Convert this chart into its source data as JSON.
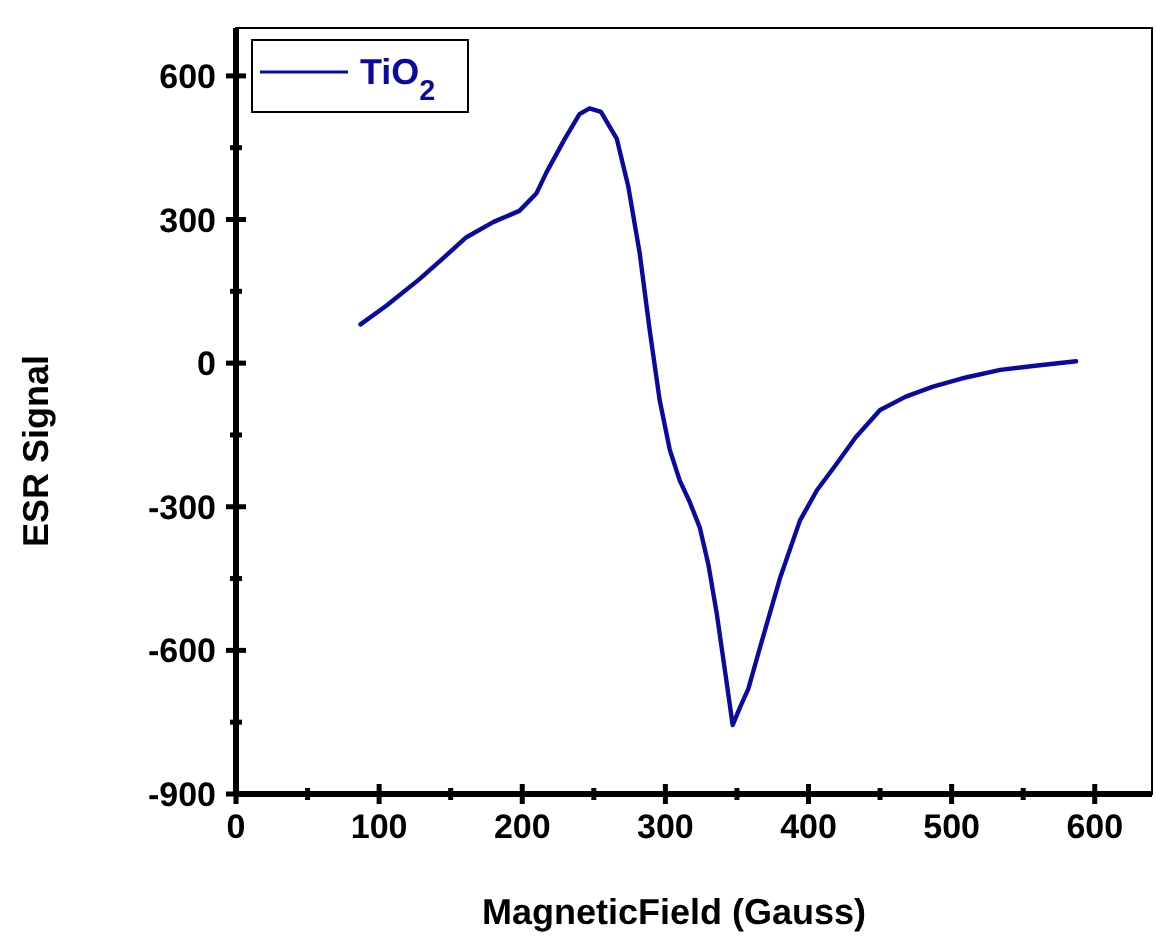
{
  "chart_data": {
    "type": "line",
    "xlabel": "MagneticField (Gauss)",
    "ylabel": "ESR Signal",
    "xlim": [
      0,
      640
    ],
    "ylim": [
      -900,
      700
    ],
    "xticks": [
      0,
      {
        "value": 50,
        "label": null
      },
      100,
      {
        "value": 150,
        "label": null
      },
      200,
      {
        "value": 250,
        "label": null
      },
      300,
      {
        "value": 350,
        "label": null
      },
      400,
      {
        "value": 450,
        "label": null
      },
      500,
      {
        "value": 550,
        "label": null
      },
      600
    ],
    "yticks": [
      -900,
      {
        "value": -750,
        "label": null
      },
      -600,
      {
        "value": -450,
        "label": null
      },
      -300,
      {
        "value": -150,
        "label": null
      },
      0,
      {
        "value": 150,
        "label": null
      },
      300,
      {
        "value": 450,
        "label": null
      },
      600
    ],
    "legend": "top left",
    "grid": false,
    "marker": "none",
    "line_style": "solid",
    "series": [
      {
        "name": "TiO$_{2}$",
        "color": "#0a0aa0",
        "x": [
          87,
          105,
          128,
          145,
          161,
          180,
          198,
          210,
          217,
          230,
          240,
          247,
          255,
          266,
          274,
          282,
          289,
          296,
          303,
          310,
          317,
          324,
          330,
          336,
          342,
          347,
          352,
          358,
          366,
          380,
          394,
          406,
          418,
          433,
          450,
          468,
          487,
          510,
          534,
          560,
          587
        ],
        "values": [
          81,
          120,
          175,
          220,
          263,
          295,
          318,
          355,
          399,
          470,
          520,
          532,
          525,
          469,
          370,
          231,
          70,
          -77,
          -180,
          -245,
          -290,
          -343,
          -420,
          -525,
          -650,
          -756,
          -720,
          -680,
          -595,
          -450,
          -329,
          -265,
          -217,
          -155,
          -98,
          -70,
          -49,
          -30,
          -14,
          -5,
          4
        ]
      }
    ]
  }
}
